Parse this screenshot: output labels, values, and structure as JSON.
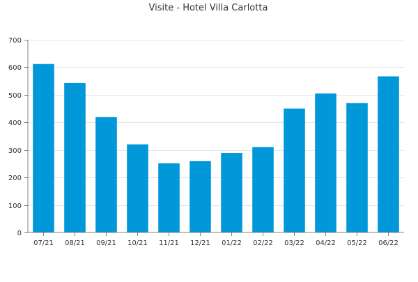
{
  "chart_data": {
    "type": "bar",
    "title": "Visite - Hotel Villa Carlotta",
    "xlabel": "",
    "ylabel": "",
    "categories": [
      "07/21",
      "08/21",
      "09/21",
      "10/21",
      "11/21",
      "12/21",
      "01/22",
      "02/22",
      "03/22",
      "04/22",
      "05/22",
      "06/22"
    ],
    "values": [
      612,
      543,
      419,
      320,
      251,
      259,
      289,
      310,
      450,
      505,
      470,
      567
    ],
    "ylim": [
      0,
      700
    ],
    "yticks": [
      0,
      100,
      200,
      300,
      400,
      500,
      600,
      700
    ],
    "grid": true,
    "legend": "none",
    "colors": {
      "bar": "#0098d8",
      "grid": "#e6e6e6",
      "axis": "#808080",
      "text": "#333333"
    }
  }
}
